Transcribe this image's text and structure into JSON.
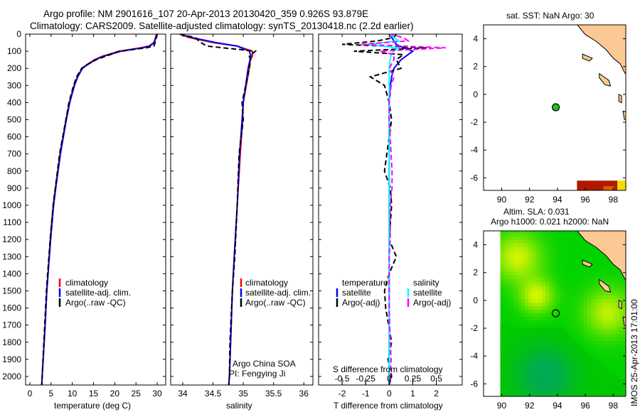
{
  "title": {
    "line1": "Argo profile: NM 2901616_107 20-Apr-2013 20130420_359 0.926S 93.879E",
    "line2": "Climatology: CARS2009. Satellite-adjusted climatology: synTS_20130418.nc (2.2d earlier)"
  },
  "chart_data": [
    {
      "type": "line",
      "id": "temperature",
      "xlabel": "temperature (deg C)",
      "ylabel": "",
      "xlim": [
        -1,
        32
      ],
      "ylim": [
        0,
        2050
      ],
      "xticks": [
        0,
        5,
        10,
        15,
        20,
        25,
        30
      ],
      "yticks": [
        0,
        100,
        200,
        300,
        400,
        500,
        600,
        700,
        800,
        900,
        1000,
        1100,
        1200,
        1300,
        1400,
        1500,
        1600,
        1700,
        1800,
        1900,
        2000
      ],
      "depth": [
        0,
        20,
        50,
        70,
        80,
        100,
        130,
        150,
        180,
        200,
        250,
        300,
        400,
        500,
        700,
        900,
        1000,
        1200,
        1400,
        1500,
        1700,
        2000,
        2050
      ],
      "series": [
        {
          "name": "climatology",
          "color": "#ff0000",
          "dash": false,
          "values": [
            29.8,
            29.6,
            29.2,
            28,
            26,
            21,
            17,
            15.2,
            13.3,
            12.3,
            11.2,
            10.4,
            9.3,
            8.5,
            7.1,
            6.0,
            5.5,
            4.8,
            4.3,
            4.0,
            3.6,
            2.9,
            2.8
          ]
        },
        {
          "name": "satellite-adj. clim.",
          "color": "#0000ff",
          "dash": false,
          "values": [
            29.9,
            29.7,
            29.3,
            28.3,
            26.5,
            21.5,
            17.3,
            15.4,
            13.5,
            12.4,
            11.3,
            10.5,
            9.4,
            8.6,
            7.2,
            6.1,
            5.6,
            4.9,
            4.3,
            4.0,
            3.6,
            2.9,
            2.8
          ]
        },
        {
          "name": "Argo(..raw -QC)",
          "color": "#000000",
          "dash": true,
          "values": [
            30.0,
            29.8,
            29.5,
            29.2,
            27.5,
            21.2,
            17.8,
            15.6,
            13.4,
            12.2,
            11.0,
            10.3,
            9.2,
            8.5,
            7.0,
            6.0,
            5.5,
            4.8,
            4.2,
            3.9,
            3.5,
            2.9,
            2.8
          ]
        }
      ],
      "legend": [
        "climatology",
        "satellite-adj. clim.",
        "Argo(..raw -QC)"
      ]
    },
    {
      "type": "line",
      "id": "salinity",
      "xlabel": "salinity",
      "xlim": [
        33.8,
        36.15
      ],
      "ylim": [
        0,
        2050
      ],
      "xticks": [
        34,
        34.5,
        35,
        35.5,
        36
      ],
      "depth": [
        0,
        20,
        50,
        70,
        100,
        130,
        150,
        200,
        300,
        400,
        500,
        700,
        1000,
        1300,
        1500,
        1800,
        2000,
        2050
      ],
      "series": [
        {
          "name": "climatology",
          "color": "#ff0000",
          "dash": false,
          "values": [
            33.95,
            34.1,
            34.5,
            34.9,
            35.15,
            35.15,
            35.12,
            35.1,
            35.05,
            35.0,
            34.99,
            34.95,
            34.9,
            34.85,
            34.82,
            34.79,
            34.77,
            34.76
          ]
        },
        {
          "name": "satellite-adj. clim.",
          "color": "#0000ff",
          "dash": false,
          "values": [
            33.95,
            34.15,
            34.55,
            34.9,
            35.1,
            35.13,
            35.11,
            35.08,
            35.04,
            35.0,
            34.98,
            34.94,
            34.9,
            34.85,
            34.82,
            34.79,
            34.77,
            34.76
          ]
        },
        {
          "name": "Argo(..raw -QC)",
          "color": "#000000",
          "dash": true,
          "values": [
            33.95,
            34.2,
            34.3,
            34.4,
            35.2,
            35.1,
            35.12,
            35.1,
            35.04,
            34.98,
            35.0,
            34.93,
            34.9,
            34.86,
            34.82,
            34.78,
            34.77,
            34.76
          ]
        }
      ],
      "legend": [
        "climatology",
        "satellite-adj. clim.",
        "Argo(..raw -QC)"
      ],
      "annotation": [
        "Argo China SOA",
        "PI: Fengying Ji"
      ]
    },
    {
      "type": "line",
      "id": "differences",
      "xlabel": "T difference from climatology",
      "xlabel_top": "S difference from climatology",
      "xlim": [
        -3,
        3.1
      ],
      "ylim": [
        0,
        2050
      ],
      "xticks": [
        -2,
        -1,
        0,
        1,
        2
      ],
      "xticks_top": [
        "-0.5",
        "-0.25",
        "0",
        "0.25",
        "0.5"
      ],
      "depth": [
        0,
        20,
        40,
        60,
        80,
        100,
        120,
        150,
        200,
        250,
        300,
        350,
        400,
        500,
        700,
        800,
        900,
        1000,
        1200,
        1300,
        1400,
        1500,
        1600,
        1800,
        1900,
        2000,
        2050
      ],
      "series": [
        {
          "name": "temperature satellite",
          "color": "#0000ff",
          "dash": false,
          "values": [
            0,
            0.1,
            0.2,
            0.3,
            0.6,
            1.0,
            0.8,
            0.5,
            0.2,
            0.1,
            0.05,
            0.02,
            0,
            0,
            0,
            0,
            0,
            0,
            0,
            0,
            0,
            0,
            0,
            0,
            0,
            0,
            0
          ]
        },
        {
          "name": "temperature Argo(-adj)",
          "color": "#000000",
          "dash": true,
          "values": [
            0.3,
            0.2,
            -0.5,
            -2.0,
            1.6,
            -1.5,
            0.6,
            0.3,
            0.5,
            -0.8,
            -0.2,
            -0.1,
            0,
            0.1,
            -0.1,
            -0.2,
            0.05,
            0.1,
            0,
            0.3,
            0,
            -0.2,
            -0.15,
            0.1,
            -0.05,
            0.1,
            0
          ]
        },
        {
          "name": "salinity satellite",
          "color": "#00ffff",
          "dash": false,
          "values": [
            0,
            0.05,
            0.1,
            -0.25,
            0.1,
            0.05,
            0.02,
            0.01,
            0,
            0,
            0,
            0,
            0,
            0,
            0,
            0,
            0,
            0,
            0,
            0,
            0,
            0,
            0,
            0,
            0,
            0,
            0
          ]
        },
        {
          "name": "salinity Argo(-adj)",
          "color": "#ff00ff",
          "dash": true,
          "values": [
            0,
            0.15,
            0.2,
            -0.3,
            0.6,
            -0.1,
            0.05,
            0.05,
            0,
            0.05,
            0.02,
            0.01,
            0,
            0,
            0.02,
            0.03,
            0.03,
            0.01,
            0.01,
            0,
            0,
            0,
            0,
            0.01,
            0.02,
            0.01,
            0
          ]
        }
      ],
      "legend": {
        "temperature": "temperature",
        "salinity": "salinity",
        "satellite": "satellite",
        "argo": "Argo(-adj)"
      }
    },
    {
      "type": "heatmap",
      "id": "sst-map",
      "title": "sat. SST: NaN Argo: 30",
      "xlim": [
        88.7,
        98.9
      ],
      "ylim": [
        -6.9,
        5
      ],
      "xticks": [
        90,
        92,
        94,
        96,
        98
      ],
      "yticks": [
        -6,
        -4,
        -2,
        0,
        2,
        4
      ],
      "argo_position": [
        93.879,
        -0.926
      ]
    },
    {
      "type": "heatmap",
      "id": "sla-map",
      "title1": "Altim. SLA: 0.031",
      "title2": "Argo h1000: 0.021 h2000: NaN",
      "xlim": [
        88.7,
        98.9
      ],
      "ylim": [
        -6.9,
        5
      ],
      "xticks": [
        90,
        92,
        94,
        96,
        98
      ],
      "yticks": [
        -6,
        -4,
        -2,
        0,
        2,
        4
      ],
      "argo_position": [
        93.879,
        -0.926
      ],
      "side_label": "IMOS 25-Apr-2013 17:01:00"
    }
  ]
}
